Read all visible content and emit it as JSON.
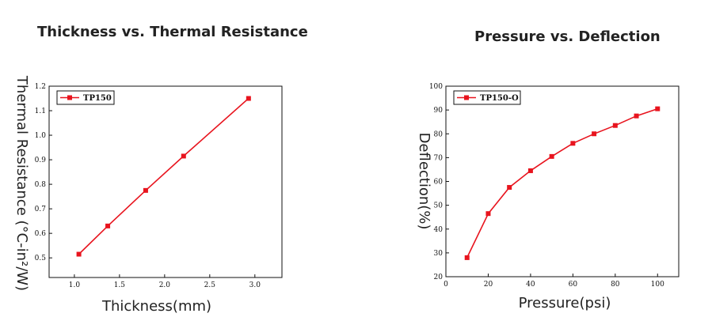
{
  "chart_data": [
    {
      "type": "line",
      "title": "Thickness vs. Thermal Resistance",
      "xlabel": "Thickness(mm)",
      "ylabel": "Thermal Resistance (°C-in²/W)",
      "xlim": [
        0.72,
        3.3
      ],
      "ylim": [
        0.42,
        1.2
      ],
      "xticks": [
        "1.0",
        "1.5",
        "2.0",
        "2.5",
        "3.0"
      ],
      "yticks": [
        "0.5",
        "0.6",
        "0.7",
        "0.8",
        "0.9",
        "1.0",
        "1.1",
        "1.2"
      ],
      "legend_position": "top-left",
      "grid": false,
      "series": [
        {
          "name": "TP150",
          "color": "#e8141e",
          "marker": "square",
          "x": [
            1.05,
            1.37,
            1.79,
            2.21,
            2.93
          ],
          "y": [
            0.515,
            0.63,
            0.775,
            0.915,
            1.15
          ]
        }
      ]
    },
    {
      "type": "line",
      "title": "Pressure vs. Deflection",
      "xlabel": "Pressure(psi)",
      "ylabel": "Deflection(%)",
      "xlim": [
        0,
        110
      ],
      "ylim": [
        20,
        100
      ],
      "xticks": [
        "0",
        "20",
        "40",
        "60",
        "80",
        "100"
      ],
      "yticks": [
        "20",
        "30",
        "40",
        "50",
        "60",
        "70",
        "80",
        "90",
        "100"
      ],
      "legend_position": "top-left",
      "grid": false,
      "series": [
        {
          "name": "TP150-O",
          "color": "#e8141e",
          "marker": "square",
          "x": [
            10,
            20,
            30,
            40,
            50,
            60,
            70,
            80,
            90,
            100
          ],
          "y": [
            28,
            46.5,
            57.5,
            64.5,
            70.5,
            76,
            80,
            83.5,
            87.5,
            90.5
          ]
        }
      ]
    }
  ]
}
